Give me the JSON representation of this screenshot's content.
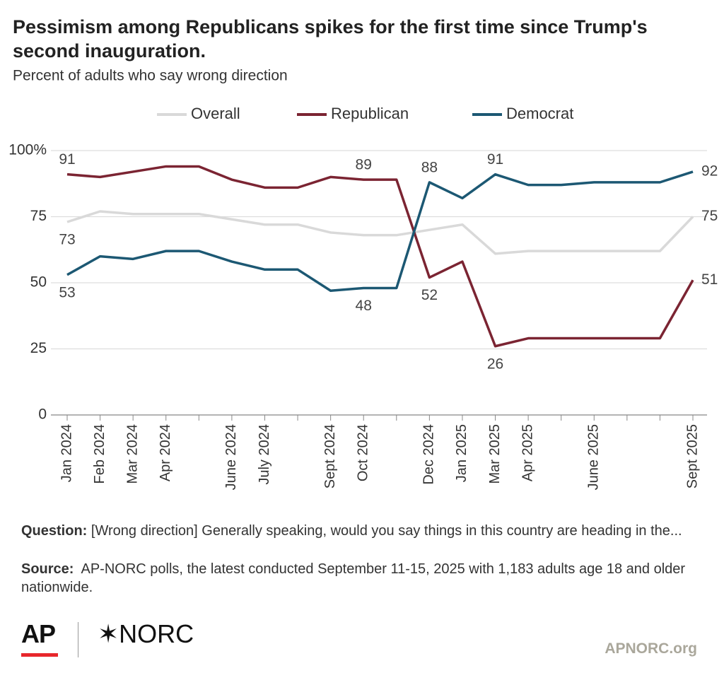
{
  "chart_data": {
    "type": "line",
    "title": "Pessimism among Republicans spikes for the first time since Trump's second inauguration.",
    "subtitle": "Percent of adults who say wrong direction",
    "categories": [
      "Jan 2024",
      "Feb 2024",
      "Mar 2024",
      "Apr 2024",
      null,
      "June 2024",
      "July 2024",
      null,
      "Sept 2024",
      "Oct 2024",
      null,
      "Dec 2024",
      "Jan 2025",
      "Mar 2025",
      "Apr 2025",
      null,
      "June 2025",
      null,
      null,
      "Sept 2025"
    ],
    "series": [
      {
        "name": "Overall",
        "color": "#d9d9d9",
        "values": [
          73,
          77,
          76,
          76,
          76,
          74,
          72,
          72,
          69,
          68,
          68,
          70,
          72,
          61,
          62,
          62,
          62,
          62,
          62,
          75
        ],
        "labeled": [
          0,
          19
        ]
      },
      {
        "name": "Republican",
        "color": "#7b2432",
        "values": [
          91,
          90,
          92,
          94,
          94,
          89,
          86,
          86,
          90,
          89,
          89,
          52,
          58,
          26,
          29,
          29,
          29,
          29,
          29,
          51
        ],
        "labeled": [
          0,
          9,
          11,
          13,
          19
        ]
      },
      {
        "name": "Democrat",
        "color": "#1c5873",
        "values": [
          53,
          60,
          59,
          62,
          62,
          58,
          55,
          55,
          47,
          48,
          48,
          88,
          82,
          91,
          87,
          87,
          88,
          88,
          88,
          92
        ],
        "labeled": [
          0,
          9,
          11,
          13,
          19
        ]
      }
    ],
    "ylim": [
      0,
      100
    ],
    "yticks": [
      0,
      25,
      50,
      75,
      {
        "value": 100,
        "label": "100%"
      }
    ],
    "grid": true,
    "legend": "top"
  },
  "footer": {
    "question_label": "Question:",
    "question": "[Wrong direction] Generally speaking, would you say things in this country are heading in the...",
    "source_label": "Source:",
    "source": "AP-NORC polls, the latest conducted September 11-15, 2025 with 1,183 adults age 18 and older nationwide.",
    "logo_ap": "AP",
    "logo_norc": "NORC",
    "site": "APNORC.org"
  }
}
